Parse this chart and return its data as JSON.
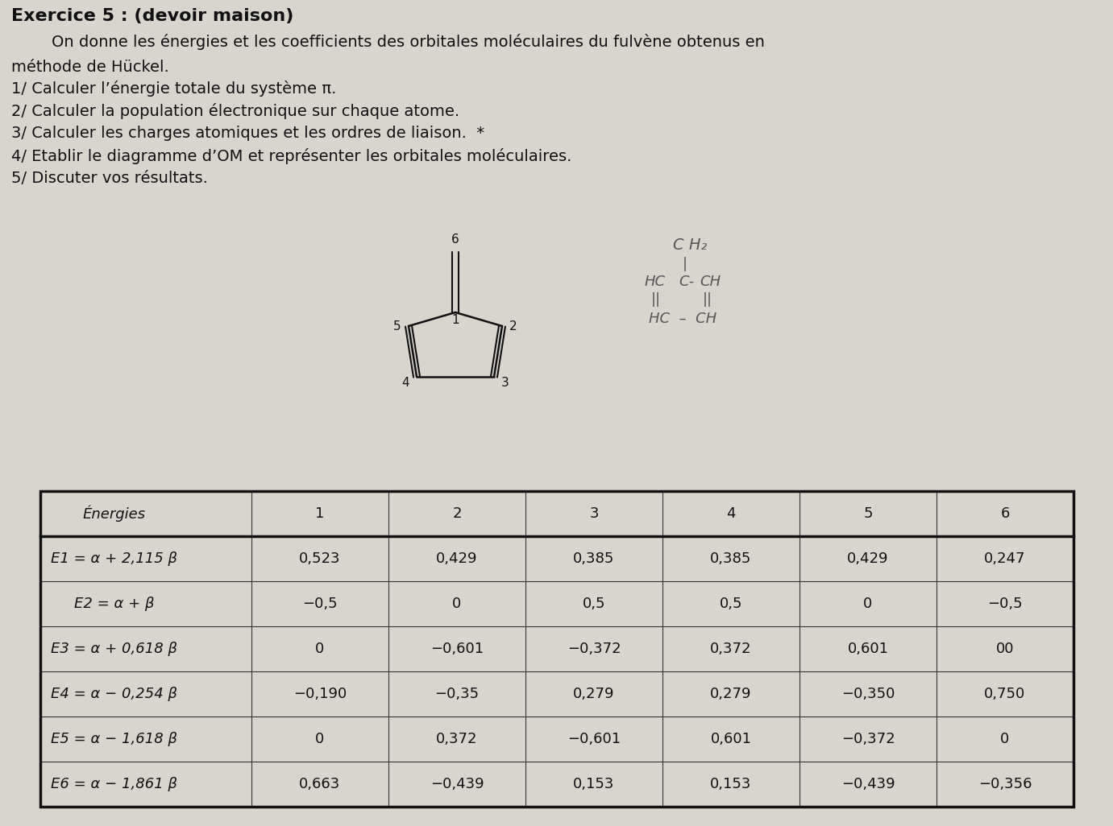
{
  "title_line1": "Exercice 5 : (devoir maison)",
  "intro1": "        On donne les énergies et les coefficients des orbitales moléculaires du fulvène obtenus en",
  "intro2": "méthode de Hückel.",
  "questions": [
    "1/ Calculer l’énergie totale du système π.",
    "2/ Calculer la population électronique sur chaque atome.",
    "3/ Calculer les charges atomiques et les ordres de liaison.  *",
    "4/ Etablir le diagramme d’OM et représenter les orbitales moléculaires.",
    "5/ Discuter vos résultats."
  ],
  "table_header": [
    "Énergies",
    "1",
    "2",
    "3",
    "4",
    "5",
    "6"
  ],
  "table_rows": [
    [
      "E1 = α + 2,115 β",
      "0,523",
      "0,429",
      "0,385",
      "0,385",
      "0,429",
      "0,247"
    ],
    [
      "E2 = α + β",
      "−0,5",
      "0",
      "0,5",
      "0,5",
      "0",
      "−0,5"
    ],
    [
      "E3 = α + 0,618 β",
      "0",
      "−0,601",
      "−0,372",
      "0,372",
      "0,601",
      "00"
    ],
    [
      "E4 = α − 0,254 β",
      "−0,190",
      "−0,35",
      "0,279",
      "0,279",
      "−0,350",
      "0,750"
    ],
    [
      "E5 = α − 1,618 β",
      "0",
      "0,372",
      "−0,601",
      "0,601",
      "−0,372",
      "0"
    ],
    [
      "E6 = α − 1,861 β",
      "0,663",
      "−0,439",
      "0,153",
      "0,153",
      "−0,439",
      "−0,356"
    ]
  ],
  "bg_color": "#d8d5cc",
  "text_color": "#111111",
  "table_border_color": "#222222",
  "mol_color": "#111111",
  "struct_color": "#555555"
}
